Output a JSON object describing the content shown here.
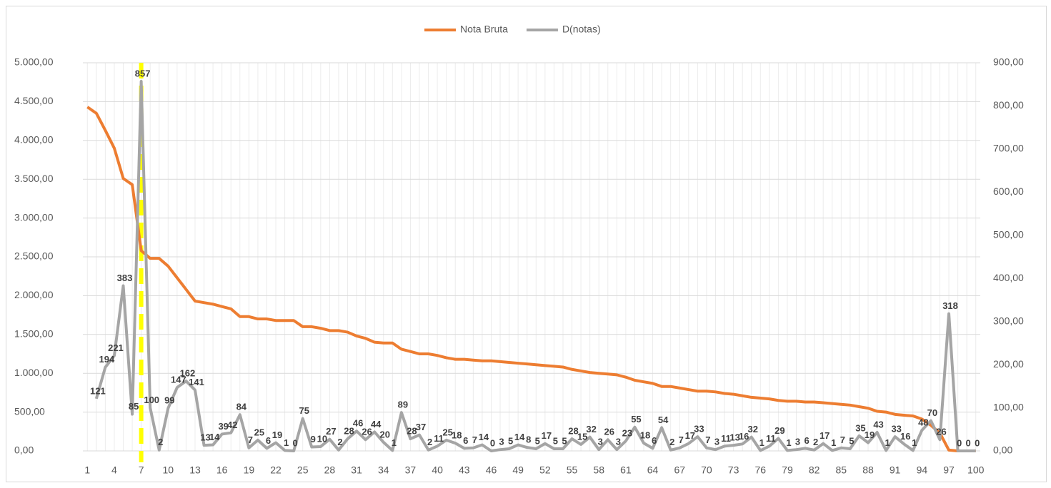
{
  "chart_data": {
    "type": "line",
    "categories": [
      1,
      null,
      null,
      4,
      null,
      null,
      7,
      null,
      null,
      10,
      null,
      null,
      13,
      null,
      null,
      16,
      null,
      null,
      19,
      null,
      null,
      22,
      null,
      null,
      25,
      null,
      null,
      28,
      null,
      null,
      31,
      null,
      null,
      34,
      null,
      null,
      37,
      null,
      null,
      40,
      null,
      null,
      43,
      null,
      null,
      46,
      null,
      null,
      49,
      null,
      null,
      52,
      null,
      null,
      55,
      null,
      null,
      58,
      null,
      null,
      61,
      null,
      null,
      64,
      null,
      null,
      67,
      null,
      null,
      70,
      null,
      null,
      73,
      null,
      null,
      76,
      null,
      null,
      79,
      null,
      null,
      82,
      null,
      null,
      85,
      null,
      null,
      88,
      null,
      null,
      91,
      null,
      null,
      94,
      null,
      null,
      97,
      null,
      null,
      100
    ],
    "series": [
      {
        "name": "Nota Bruta",
        "color": "#ed7d31",
        "values": [
          4430,
          4350,
          4130,
          3900,
          3510,
          3430,
          2580,
          2480,
          2480,
          2380,
          2230,
          2080,
          1930,
          1910,
          1890,
          1860,
          1830,
          1730,
          1730,
          1700,
          1700,
          1680,
          1680,
          1680,
          1600,
          1600,
          1580,
          1550,
          1550,
          1530,
          1480,
          1450,
          1400,
          1390,
          1390,
          1310,
          1280,
          1250,
          1250,
          1230,
          1200,
          1180,
          1180,
          1170,
          1160,
          1160,
          1150,
          1140,
          1130,
          1120,
          1110,
          1100,
          1090,
          1080,
          1050,
          1030,
          1010,
          1000,
          990,
          980,
          950,
          910,
          890,
          870,
          830,
          830,
          810,
          790,
          770,
          770,
          760,
          740,
          730,
          710,
          690,
          680,
          670,
          650,
          640,
          640,
          630,
          630,
          620,
          610,
          600,
          590,
          570,
          550,
          510,
          500,
          470,
          460,
          450,
          410,
          330,
          230,
          10,
          0,
          0,
          0
        ]
      },
      {
        "name": "D(notas)",
        "color": "#a5a5a5",
        "axis": "y2",
        "data_labels": true,
        "values": [
          null,
          121,
          194,
          221,
          383,
          85,
          857,
          100,
          2,
          99,
          147,
          162,
          141,
          13,
          14,
          39,
          42,
          84,
          7,
          25,
          6,
          19,
          1,
          0,
          75,
          9,
          10,
          27,
          2,
          28,
          46,
          26,
          44,
          20,
          1,
          89,
          28,
          37,
          2,
          11,
          25,
          18,
          6,
          7,
          14,
          0,
          3,
          5,
          14,
          8,
          5,
          17,
          5,
          5,
          28,
          15,
          32,
          3,
          26,
          3,
          23,
          55,
          18,
          6,
          54,
          2,
          7,
          17,
          33,
          7,
          3,
          11,
          13,
          16,
          32,
          1,
          11,
          29,
          1,
          3,
          6,
          2,
          17,
          1,
          7,
          5,
          35,
          19,
          43,
          1,
          33,
          16,
          1,
          48,
          70,
          26,
          318,
          0,
          0,
          0
        ]
      }
    ],
    "ylim": [
      0,
      5000
    ],
    "yticks": [
      {
        "value": 0,
        "label": "0,00"
      },
      {
        "value": 500,
        "label": "500,00"
      },
      {
        "value": 1000,
        "label": "1.000,00"
      },
      {
        "value": 1500,
        "label": "1.500,00"
      },
      {
        "value": 2000,
        "label": "2.000,00"
      },
      {
        "value": 2500,
        "label": "2.500,00"
      },
      {
        "value": 3000,
        "label": "3.000,00"
      },
      {
        "value": 3500,
        "label": "3.500,00"
      },
      {
        "value": 4000,
        "label": "4.000,00"
      },
      {
        "value": 4500,
        "label": "4.500,00"
      },
      {
        "value": 5000,
        "label": "5.000,00"
      }
    ],
    "y2lim": [
      0,
      900
    ],
    "y2ticks": [
      {
        "value": 0,
        "label": "0,00"
      },
      {
        "value": 100,
        "label": "100,00"
      },
      {
        "value": 200,
        "label": "200,00"
      },
      {
        "value": 300,
        "label": "300,00"
      },
      {
        "value": 400,
        "label": "400,00"
      },
      {
        "value": 500,
        "label": "500,00"
      },
      {
        "value": 600,
        "label": "600,00"
      },
      {
        "value": 700,
        "label": "700,00"
      },
      {
        "value": 800,
        "label": "800,00"
      },
      {
        "value": 900,
        "label": "900,00"
      }
    ],
    "grid": true,
    "legend": "top",
    "vline": {
      "category": 7,
      "color": "#ffff00"
    }
  }
}
